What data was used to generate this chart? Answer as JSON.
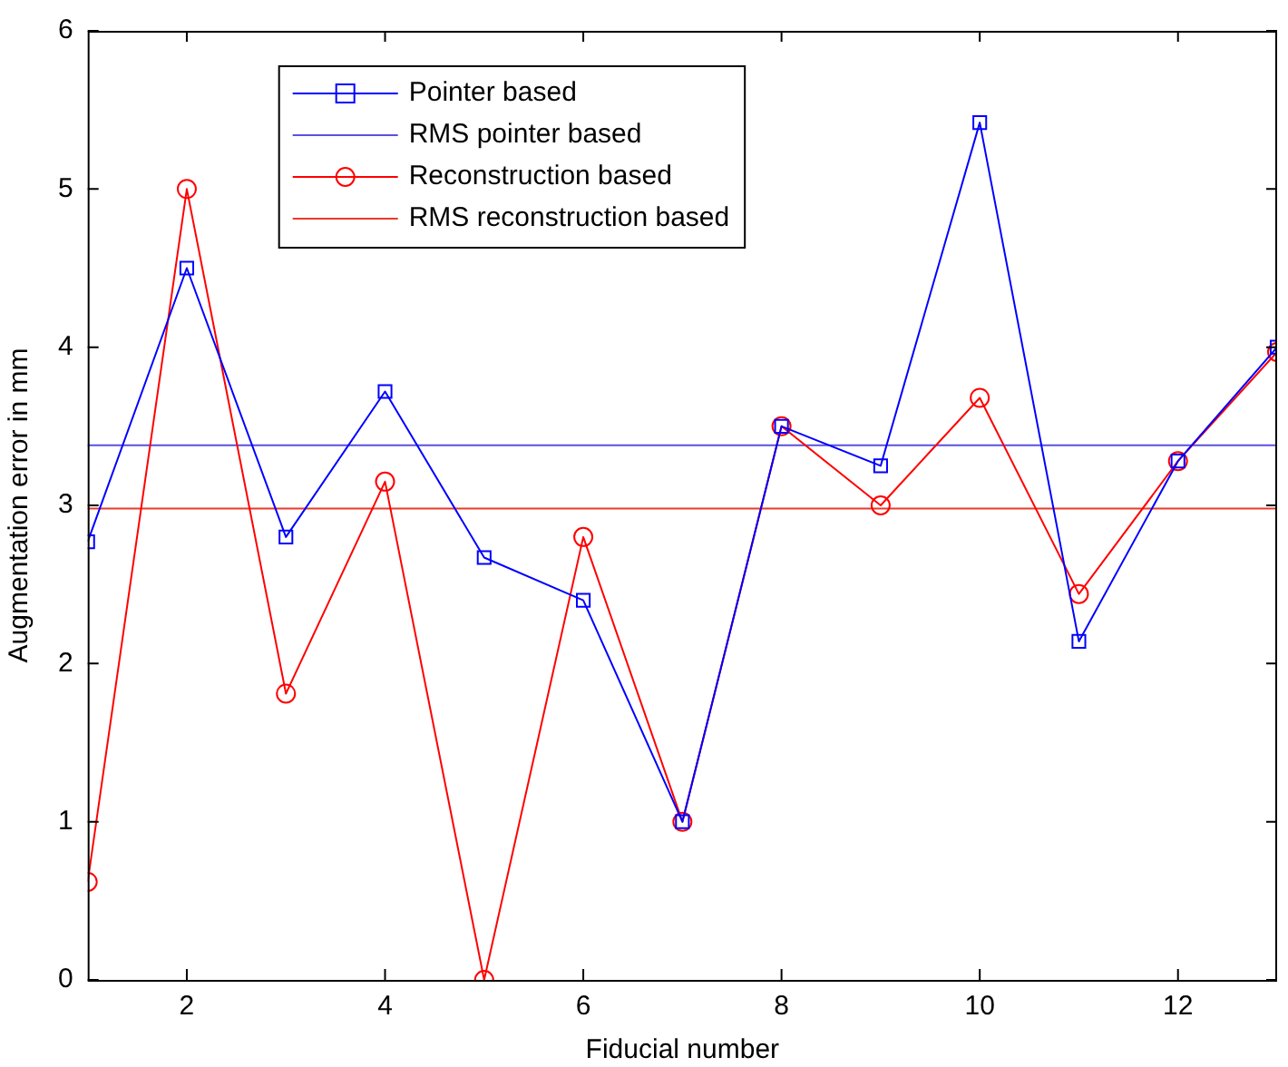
{
  "chart_data": {
    "type": "line",
    "xlabel": "Fiducial number",
    "ylabel": "Augmentation error in mm",
    "x": [
      1,
      2,
      3,
      4,
      5,
      6,
      7,
      8,
      9,
      10,
      11,
      12,
      13
    ],
    "series": [
      {
        "name": "Pointer based",
        "color": "#0000ff",
        "marker": "square",
        "values": [
          2.77,
          4.5,
          2.8,
          3.72,
          2.67,
          2.4,
          1.0,
          3.5,
          3.25,
          5.42,
          2.14,
          3.28,
          4.0
        ]
      },
      {
        "name": "Reconstruction based",
        "color": "#ff0000",
        "marker": "circle",
        "values": [
          0.62,
          5.0,
          1.81,
          3.15,
          0,
          2.8,
          1.0,
          3.5,
          3.0,
          3.68,
          2.44,
          3.28,
          3.97
        ]
      }
    ],
    "ref_lines": [
      {
        "axis": "y",
        "value": 3.38,
        "label": "RMS pointer based",
        "color": "#5a50e0"
      },
      {
        "axis": "y",
        "value": 2.98,
        "label": "RMS reconstruction based",
        "color": "#e83a2a"
      }
    ],
    "xlim": [
      1,
      13
    ],
    "xticks": [
      2,
      4,
      6,
      8,
      10,
      12
    ],
    "ylim": [
      0,
      6
    ],
    "yticks": [
      0,
      1,
      2,
      3,
      4,
      5,
      6
    ],
    "grid": false,
    "legend": "top left",
    "line_style": "solid"
  }
}
